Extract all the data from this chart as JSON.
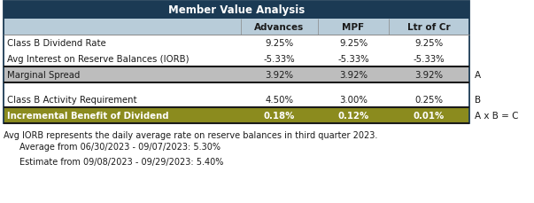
{
  "title": "Member Value Analysis",
  "title_bg": "#1b3a54",
  "title_color": "#ffffff",
  "header_labels": [
    "",
    "Advances",
    "MPF",
    "Ltr of Cr"
  ],
  "header_bg": "#b8ccd9",
  "rows": [
    {
      "label": "Class B Dividend Rate",
      "values": [
        "9.25%",
        "9.25%",
        "9.25%"
      ],
      "bg": "#ffffff",
      "bold": false,
      "side": ""
    },
    {
      "label": "Avg Interest on Reserve Balances (IORB)",
      "values": [
        "-5.33%",
        "-5.33%",
        "-5.33%"
      ],
      "bg": "#ffffff",
      "bold": false,
      "side": ""
    },
    {
      "label": "Marginal Spread",
      "values": [
        "3.92%",
        "3.92%",
        "3.92%"
      ],
      "bg": "#bdbdbd",
      "bold": false,
      "side": "A"
    },
    {
      "label": "",
      "values": [
        "",
        "",
        ""
      ],
      "bg": "#ffffff",
      "bold": false,
      "side": ""
    },
    {
      "label": "Class B Activity Requirement",
      "values": [
        "4.50%",
        "3.00%",
        "0.25%"
      ],
      "bg": "#ffffff",
      "bold": false,
      "side": "B"
    },
    {
      "label": "Incremental Benefit of Dividend",
      "values": [
        "0.18%",
        "0.12%",
        "0.01%"
      ],
      "bg": "#8b8b1e",
      "bold": true,
      "side": "A x B = C"
    }
  ],
  "footer_lines": [
    {
      "text": "Avg IORB represents the daily average rate on reserve balances in third quarter 2023.",
      "indent": false
    },
    {
      "text": "Average from 06/30/2023 - 09/07/2023: 5.30%",
      "indent": true
    },
    {
      "text": "",
      "indent": false
    },
    {
      "text": "Estimate from 09/08/2023 - 09/29/2023: 5.40%",
      "indent": true
    }
  ],
  "outer_border": "#1b3a54",
  "dark_line": "#1a1a1a",
  "text_dark": "#1a1a1a",
  "text_white": "#ffffff"
}
